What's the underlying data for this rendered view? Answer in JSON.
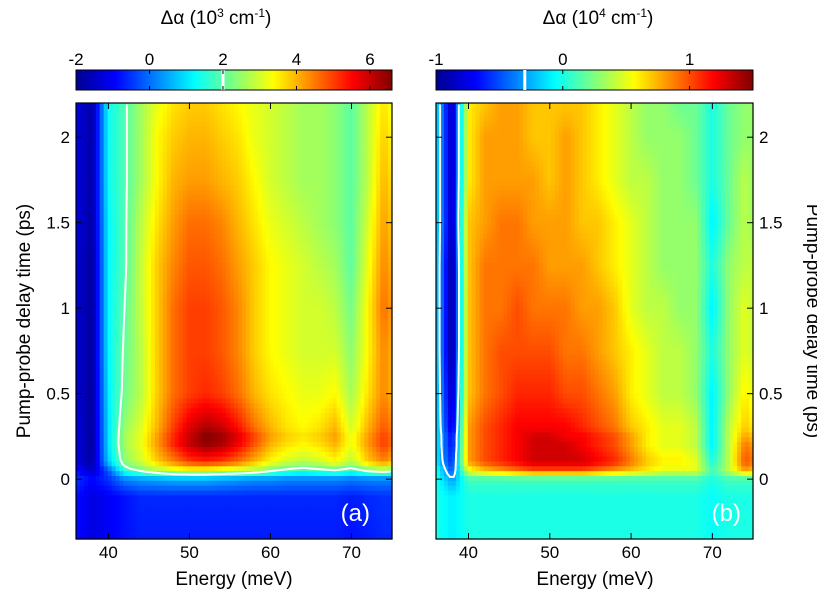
{
  "chart_data": [
    {
      "type": "heatmap",
      "panel_label": "(a)",
      "colorbar": {
        "label_prefix": "Δα (10",
        "label_exp": "3",
        "label_unit": " cm",
        "label_unit_exp": "-1",
        "label_suffix": ")",
        "range": [
          -2,
          6.6
        ],
        "ticks": [
          "-2",
          "0",
          "2",
          "4",
          "6"
        ],
        "tick_values": [
          -2,
          0,
          2,
          4,
          6
        ],
        "contour_level": 2
      },
      "xlabel": "Energy (meV)",
      "ylabel": "Pump-probe delay time (ps)",
      "xlim": [
        36,
        75
      ],
      "ylim": [
        -0.35,
        2.2
      ],
      "xticks": [
        "40",
        "50",
        "60",
        "70"
      ],
      "xtick_values": [
        40,
        50,
        60,
        70
      ],
      "yticks": [
        "0",
        "0.5",
        "1",
        "1.5",
        "2"
      ],
      "ytick_values": [
        0,
        0.5,
        1,
        1.5,
        2
      ],
      "energy": [
        36,
        38,
        40,
        42,
        44,
        46,
        48,
        50,
        52,
        54,
        56,
        58,
        60,
        62,
        64,
        66,
        68,
        70,
        72,
        74,
        75
      ],
      "delay": [
        -0.35,
        -0.1,
        0.0,
        0.05,
        0.1,
        0.2,
        0.25,
        0.3,
        0.5,
        0.75,
        1.0,
        1.25,
        1.5,
        1.75,
        2.0,
        2.2
      ],
      "values": [
        [
          -0.8,
          -1.2,
          -1.0,
          -0.8,
          -0.7,
          -0.7,
          -0.7,
          -0.7,
          -0.7,
          -0.7,
          -0.7,
          -0.7,
          -0.7,
          -0.7,
          -0.7,
          -0.7,
          -0.7,
          -0.8,
          -0.7,
          -0.6,
          -0.6
        ],
        [
          -0.8,
          -1.2,
          -1.0,
          -0.8,
          -0.6,
          -0.6,
          -0.6,
          -0.6,
          -0.6,
          -0.6,
          -0.6,
          -0.6,
          -0.6,
          -0.6,
          -0.6,
          -0.6,
          -0.6,
          -0.7,
          -0.6,
          -0.5,
          -0.5
        ],
        [
          -0.5,
          -0.9,
          -0.5,
          0.2,
          0.4,
          0.5,
          0.6,
          0.6,
          0.6,
          0.5,
          0.4,
          0.3,
          0.3,
          0.2,
          0.2,
          0.2,
          0.2,
          0.1,
          0.2,
          0.2,
          0.2
        ],
        [
          -0.8,
          -1.5,
          -0.2,
          1.6,
          2.2,
          2.6,
          3.0,
          3.2,
          3.2,
          3.0,
          2.8,
          2.6,
          2.2,
          1.8,
          1.6,
          1.8,
          2.0,
          1.6,
          2.2,
          2.4,
          2.2
        ],
        [
          -1.2,
          -1.8,
          0.8,
          2.4,
          3.0,
          3.8,
          4.4,
          5.0,
          5.2,
          5.0,
          4.6,
          4.0,
          3.4,
          3.0,
          2.8,
          3.0,
          3.4,
          2.8,
          3.8,
          4.4,
          4.0
        ],
        [
          -1.2,
          -1.9,
          1.0,
          2.6,
          3.2,
          4.2,
          5.2,
          6.0,
          6.4,
          6.2,
          5.6,
          4.8,
          4.0,
          3.6,
          3.4,
          3.6,
          4.0,
          3.2,
          4.2,
          5.0,
          4.6
        ],
        [
          -1.2,
          -1.9,
          1.0,
          2.6,
          3.2,
          4.2,
          5.2,
          6.0,
          6.6,
          6.4,
          5.8,
          5.0,
          4.2,
          3.8,
          3.6,
          3.8,
          4.2,
          3.2,
          4.2,
          5.0,
          4.6
        ],
        [
          -1.2,
          -1.9,
          1.0,
          2.5,
          3.1,
          4.0,
          5.0,
          5.8,
          6.2,
          6.0,
          5.4,
          4.6,
          4.0,
          3.6,
          3.4,
          3.6,
          4.0,
          3.0,
          4.0,
          4.8,
          4.4
        ],
        [
          -1.3,
          -1.9,
          1.1,
          2.2,
          2.8,
          3.8,
          4.6,
          5.0,
          5.2,
          5.0,
          4.6,
          4.0,
          3.6,
          3.4,
          3.2,
          3.2,
          3.4,
          2.6,
          3.6,
          4.4,
          4.0
        ],
        [
          -1.3,
          -1.9,
          1.2,
          2.1,
          2.8,
          3.8,
          4.6,
          5.0,
          5.0,
          4.8,
          4.4,
          3.8,
          3.4,
          3.2,
          3.0,
          3.0,
          3.0,
          2.4,
          3.4,
          4.4,
          4.0
        ],
        [
          -1.3,
          -1.9,
          1.2,
          2.0,
          2.9,
          3.8,
          4.6,
          5.0,
          5.0,
          4.8,
          4.4,
          3.8,
          3.4,
          3.2,
          3.0,
          3.0,
          2.8,
          2.2,
          3.4,
          4.6,
          4.2
        ],
        [
          -1.3,
          -1.9,
          1.2,
          1.9,
          2.9,
          3.8,
          4.4,
          4.8,
          4.8,
          4.6,
          4.2,
          3.8,
          3.4,
          3.2,
          3.0,
          2.8,
          2.6,
          2.0,
          3.2,
          4.4,
          4.0
        ],
        [
          -1.2,
          -1.8,
          1.2,
          1.9,
          2.8,
          3.6,
          4.2,
          4.6,
          4.6,
          4.4,
          4.0,
          3.6,
          3.2,
          3.0,
          2.8,
          2.6,
          2.4,
          2.0,
          3.0,
          4.2,
          3.8
        ],
        [
          -1.2,
          -1.8,
          1.3,
          1.9,
          2.6,
          3.4,
          4.0,
          4.2,
          4.2,
          4.0,
          3.8,
          3.4,
          3.0,
          2.8,
          2.6,
          2.6,
          2.4,
          2.0,
          2.8,
          4.0,
          3.6
        ],
        [
          -1.2,
          -1.8,
          1.3,
          1.9,
          2.6,
          3.4,
          3.8,
          4.0,
          4.0,
          3.8,
          3.6,
          3.2,
          3.0,
          2.8,
          2.6,
          2.6,
          2.4,
          2.0,
          2.8,
          3.8,
          3.4
        ],
        [
          -1.2,
          -1.8,
          1.3,
          1.9,
          2.6,
          3.2,
          3.6,
          3.8,
          3.8,
          3.6,
          3.4,
          3.2,
          3.0,
          2.8,
          2.6,
          2.6,
          2.4,
          2.0,
          2.8,
          3.6,
          3.2
        ]
      ]
    },
    {
      "type": "heatmap",
      "panel_label": "(b)",
      "colorbar": {
        "label_prefix": "Δα (10",
        "label_exp": "4",
        "label_unit": " cm",
        "label_unit_exp": "-1",
        "label_suffix": ")",
        "range": [
          -1,
          1.5
        ],
        "ticks": [
          "-1",
          "0",
          "1"
        ],
        "tick_values": [
          -1,
          0,
          1
        ],
        "contour_level": -0.3
      },
      "xlabel": "Energy (meV)",
      "ylabel": "Pump-probe delay time (ps)",
      "xlim": [
        36,
        75
      ],
      "ylim": [
        -0.35,
        2.2
      ],
      "xticks": [
        "40",
        "50",
        "60",
        "70"
      ],
      "xtick_values": [
        40,
        50,
        60,
        70
      ],
      "yticks": [
        "0",
        "0.5",
        "1",
        "1.5",
        "2"
      ],
      "ytick_values": [
        0,
        0.5,
        1,
        1.5,
        2
      ],
      "energy": [
        36,
        38,
        40,
        42,
        44,
        46,
        48,
        50,
        52,
        54,
        56,
        58,
        60,
        62,
        64,
        66,
        68,
        70,
        72,
        74,
        75
      ],
      "delay": [
        -0.35,
        -0.1,
        0.0,
        0.05,
        0.1,
        0.2,
        0.25,
        0.3,
        0.5,
        0.75,
        1.0,
        1.25,
        1.5,
        1.75,
        2.0,
        2.2
      ],
      "values": [
        [
          0.0,
          -0.1,
          0.0,
          0.0,
          0.0,
          0.0,
          0.0,
          0.0,
          0.0,
          0.0,
          0.0,
          0.0,
          0.0,
          0.0,
          0.0,
          0.0,
          0.0,
          -0.05,
          0.0,
          0.0,
          0.0
        ],
        [
          0.0,
          -0.1,
          0.0,
          0.0,
          0.0,
          0.0,
          0.0,
          0.0,
          0.0,
          0.0,
          0.0,
          0.0,
          0.0,
          0.0,
          0.0,
          0.0,
          0.0,
          -0.05,
          0.0,
          0.0,
          0.0
        ],
        [
          0.0,
          -0.3,
          0.1,
          0.1,
          0.1,
          0.1,
          0.1,
          0.1,
          0.1,
          0.1,
          0.1,
          0.1,
          0.1,
          0.1,
          0.1,
          0.1,
          0.1,
          0.0,
          0.1,
          0.1,
          0.1
        ],
        [
          0.0,
          -0.5,
          0.5,
          0.7,
          0.8,
          0.9,
          1.0,
          1.0,
          1.0,
          1.0,
          0.9,
          0.8,
          0.7,
          0.6,
          0.5,
          0.5,
          0.5,
          0.1,
          0.4,
          0.8,
          0.7
        ],
        [
          -0.1,
          -0.6,
          0.8,
          1.0,
          1.1,
          1.2,
          1.3,
          1.3,
          1.3,
          1.3,
          1.2,
          1.1,
          0.9,
          0.7,
          0.6,
          0.6,
          0.5,
          0.0,
          0.4,
          1.0,
          0.9
        ],
        [
          -0.1,
          -0.7,
          0.8,
          1.0,
          1.1,
          1.2,
          1.3,
          1.3,
          1.3,
          1.2,
          1.1,
          1.0,
          0.8,
          0.6,
          0.5,
          0.5,
          0.4,
          -0.1,
          0.4,
          0.9,
          0.8
        ],
        [
          -0.1,
          -0.7,
          0.8,
          1.0,
          1.1,
          1.2,
          1.3,
          1.3,
          1.2,
          1.2,
          1.1,
          1.0,
          0.8,
          0.6,
          0.5,
          0.5,
          0.4,
          -0.1,
          0.4,
          0.8,
          0.7
        ],
        [
          -0.1,
          -0.8,
          0.8,
          1.0,
          1.1,
          1.2,
          1.2,
          1.2,
          1.2,
          1.1,
          1.0,
          0.9,
          0.7,
          0.6,
          0.5,
          0.5,
          0.4,
          -0.1,
          0.4,
          0.7,
          0.6
        ],
        [
          -0.1,
          -0.9,
          0.7,
          0.9,
          1.0,
          1.1,
          1.1,
          1.1,
          1.0,
          1.0,
          0.9,
          0.8,
          0.6,
          0.5,
          0.4,
          0.4,
          0.3,
          -0.1,
          0.3,
          0.6,
          0.5
        ],
        [
          -0.1,
          -1.0,
          0.7,
          0.9,
          1.0,
          1.0,
          1.0,
          1.0,
          0.9,
          0.9,
          0.8,
          0.7,
          0.6,
          0.5,
          0.4,
          0.4,
          0.3,
          0.0,
          0.3,
          0.5,
          0.4
        ],
        [
          -0.1,
          -1.0,
          0.7,
          0.9,
          0.9,
          1.0,
          0.9,
          0.9,
          0.9,
          0.8,
          0.8,
          0.7,
          0.5,
          0.4,
          0.4,
          0.3,
          0.3,
          -0.1,
          0.3,
          0.5,
          0.4
        ],
        [
          -0.1,
          -1.0,
          0.7,
          0.9,
          0.9,
          0.9,
          0.9,
          0.8,
          0.8,
          0.8,
          0.7,
          0.6,
          0.5,
          0.4,
          0.3,
          0.3,
          0.3,
          0.0,
          0.3,
          0.4,
          0.4
        ],
        [
          -0.1,
          -0.9,
          0.7,
          0.8,
          0.9,
          0.9,
          0.8,
          0.8,
          0.8,
          0.7,
          0.7,
          0.6,
          0.5,
          0.4,
          0.3,
          0.3,
          0.3,
          -0.1,
          0.2,
          0.4,
          0.3
        ],
        [
          -0.1,
          -0.9,
          0.6,
          0.8,
          0.8,
          0.8,
          0.8,
          0.7,
          0.8,
          0.7,
          0.6,
          0.5,
          0.4,
          0.4,
          0.3,
          0.3,
          0.2,
          0.0,
          0.2,
          0.4,
          0.3
        ],
        [
          -0.1,
          -0.9,
          0.6,
          0.8,
          0.8,
          0.8,
          0.7,
          0.7,
          0.8,
          0.7,
          0.6,
          0.5,
          0.4,
          0.3,
          0.3,
          0.3,
          0.2,
          0.0,
          0.2,
          0.3,
          0.3
        ],
        [
          -0.1,
          -0.9,
          0.6,
          0.7,
          0.8,
          0.8,
          0.7,
          0.7,
          0.7,
          0.7,
          0.6,
          0.5,
          0.4,
          0.3,
          0.3,
          0.2,
          0.2,
          0.0,
          0.2,
          0.3,
          0.3
        ]
      ]
    }
  ]
}
